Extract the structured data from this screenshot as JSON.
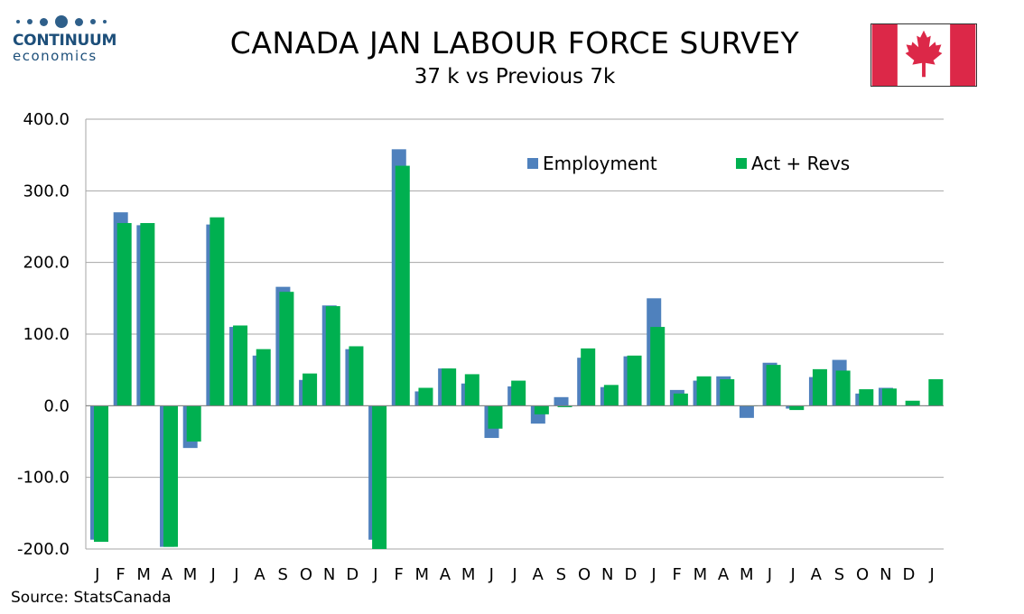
{
  "logo": {
    "brand": "CONTINUUM",
    "sub": "economics"
  },
  "source": "Source: StatsCanada",
  "colors": {
    "employment": "#4f81bd",
    "act_revs": "#00b050",
    "grid": "#a6a6a6",
    "flag_red": "#dc2848"
  },
  "chart_data": {
    "type": "bar",
    "title": "CANADA JAN LABOUR FORCE SURVEY",
    "subtitle": "37 k vs Previous 7k",
    "xlabel": "",
    "ylabel": "",
    "ylim": [
      -200,
      400
    ],
    "yticks": [
      "400.0",
      "300.0",
      "200.0",
      "100.0",
      "0.0",
      "-100.0",
      "-200.0"
    ],
    "ytick_values": [
      400,
      300,
      200,
      100,
      0,
      -100,
      -200
    ],
    "categories": [
      "J",
      "F",
      "M",
      "A",
      "M",
      "J",
      "J",
      "A",
      "S",
      "O",
      "N",
      "D",
      "J",
      "F",
      "M",
      "A",
      "M",
      "J",
      "J",
      "A",
      "S",
      "O",
      "N",
      "D",
      "J",
      "F",
      "M",
      "A",
      "M",
      "J",
      "J",
      "A",
      "S",
      "O",
      "N",
      "D",
      "J"
    ],
    "legend_position": "top-right",
    "grid": true,
    "series": [
      {
        "name": "Employment",
        "values": [
          -187,
          270,
          252,
          -197,
          -59,
          253,
          110,
          70,
          166,
          36,
          140,
          79,
          -187,
          358,
          20,
          52,
          31,
          -45,
          27,
          -25,
          12,
          67,
          26,
          69,
          150,
          22,
          35,
          41,
          -17,
          60,
          -4,
          40,
          64,
          17,
          25,
          0,
          0
        ]
      },
      {
        "name": "Act + Revs",
        "values": [
          -190,
          255,
          255,
          -197,
          -50,
          263,
          112,
          79,
          159,
          45,
          139,
          83,
          -200,
          335,
          25,
          52,
          44,
          -32,
          35,
          -12,
          -2,
          80,
          29,
          70,
          110,
          17,
          41,
          37,
          0,
          57,
          -6,
          51,
          49,
          23,
          24,
          7,
          37
        ]
      }
    ]
  }
}
